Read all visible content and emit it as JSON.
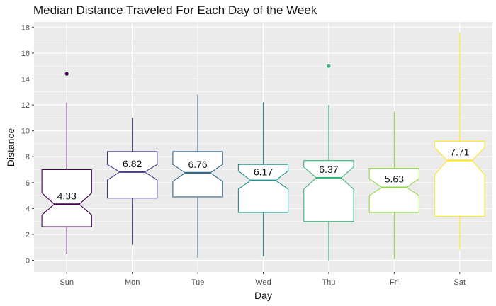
{
  "chart_data": {
    "type": "boxplot",
    "title": "Median Distance Traveled For Each Day of the Week",
    "xlabel": "Day",
    "ylabel": "Distance",
    "ylim": [
      -0.9,
      18.4
    ],
    "y_ticks": [
      0,
      2,
      4,
      6,
      8,
      10,
      12,
      14,
      16,
      18
    ],
    "y_tick_labels": [
      "0",
      "2",
      "4",
      "6",
      "8",
      "10",
      "12",
      "14",
      "16",
      "18"
    ],
    "notched": true,
    "grid": true,
    "background": "#ebebeb",
    "categories": [
      "Sun",
      "Mon",
      "Tue",
      "Wed",
      "Thu",
      "Fri",
      "Sat"
    ],
    "boxes": [
      {
        "day": "Sun",
        "min": 0.5,
        "q1": 2.6,
        "median": 4.33,
        "q3": 7.0,
        "max": 12.2,
        "notch_low": 3.5,
        "notch_high": 5.2,
        "outliers": [
          14.4
        ],
        "label": "4.33",
        "color": "#440154"
      },
      {
        "day": "Mon",
        "min": 1.2,
        "q1": 4.8,
        "median": 6.82,
        "q3": 8.4,
        "max": 11.0,
        "notch_low": 6.2,
        "notch_high": 7.4,
        "outliers": [],
        "label": "6.82",
        "color": "#443a83"
      },
      {
        "day": "Tue",
        "min": 0.2,
        "q1": 4.9,
        "median": 6.76,
        "q3": 8.4,
        "max": 12.8,
        "notch_low": 6.1,
        "notch_high": 7.4,
        "outliers": [],
        "label": "6.76",
        "color": "#31688e"
      },
      {
        "day": "Wed",
        "min": 0.3,
        "q1": 3.7,
        "median": 6.17,
        "q3": 7.4,
        "max": 12.2,
        "notch_low": 5.5,
        "notch_high": 6.9,
        "outliers": [],
        "label": "6.17",
        "color": "#21908d"
      },
      {
        "day": "Thu",
        "min": 0.0,
        "q1": 3.0,
        "median": 6.37,
        "q3": 7.7,
        "max": 12.0,
        "notch_low": 5.5,
        "notch_high": 7.2,
        "outliers": [
          15.0
        ],
        "label": "6.37",
        "color": "#35b779"
      },
      {
        "day": "Fri",
        "min": 0.1,
        "q1": 3.7,
        "median": 5.63,
        "q3": 7.1,
        "max": 11.5,
        "notch_low": 5.0,
        "notch_high": 6.3,
        "outliers": [],
        "label": "5.63",
        "color": "#8fd744"
      },
      {
        "day": "Sat",
        "min": 0.8,
        "q1": 3.4,
        "median": 7.71,
        "q3": 9.2,
        "max": 17.6,
        "notch_low": 6.6,
        "notch_high": 8.7,
        "outliers": [],
        "label": "7.71",
        "color": "#fde725"
      }
    ]
  }
}
